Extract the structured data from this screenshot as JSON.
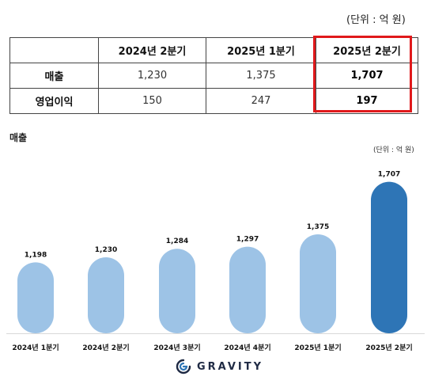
{
  "unit_top": "(단위 : 억 원)",
  "table": {
    "columns": [
      "",
      "2024년 2분기",
      "2025년 1분기",
      "2025년 2분기"
    ],
    "rows": [
      {
        "label": "매출",
        "values": [
          "1,230",
          "1,375",
          "1,707"
        ]
      },
      {
        "label": "영업이익",
        "values": [
          "150",
          "247",
          "197"
        ]
      }
    ]
  },
  "chart_title": "매출",
  "chart_unit": "(단위 : 억 원)",
  "chart_data": {
    "type": "bar",
    "categories": [
      "2024년 1분기",
      "2024년 2분기",
      "2024년 3분기",
      "2024년 4분기",
      "2025년 1분기",
      "2025년 2분기"
    ],
    "values": [
      1198,
      1230,
      1284,
      1297,
      1375,
      1707
    ],
    "value_labels": [
      "1,198",
      "1,230",
      "1,284",
      "1,297",
      "1,375",
      "1,707"
    ],
    "colors": [
      "#9dc3e6",
      "#9dc3e6",
      "#9dc3e6",
      "#9dc3e6",
      "#9dc3e6",
      "#2e75b6"
    ],
    "ylim": [
      750,
      1750
    ],
    "grid": false,
    "xlabel": "",
    "ylabel": ""
  },
  "logo": {
    "text": "GRAVITY",
    "icon": "gravity-logo-icon",
    "color": "#1f2a44"
  }
}
